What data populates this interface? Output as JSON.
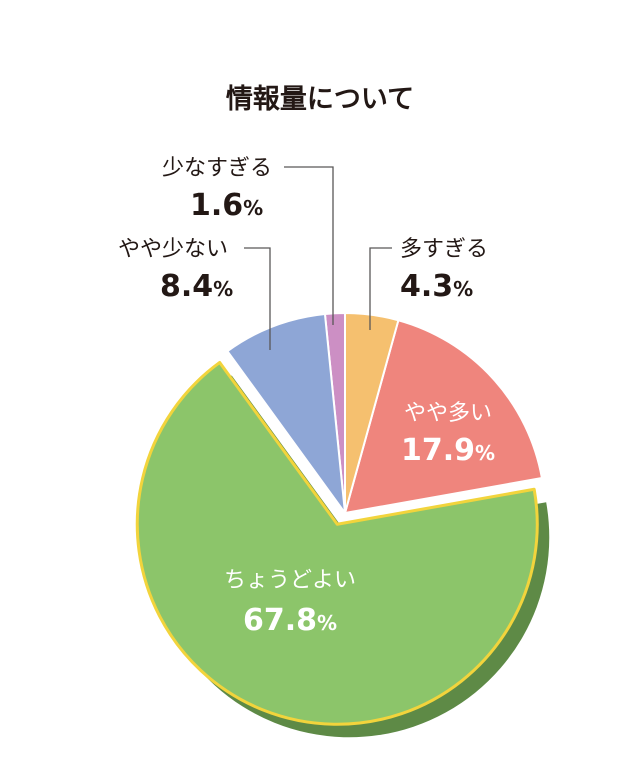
{
  "chart_data": {
    "type": "pie",
    "title": "情報量について",
    "unit": "%",
    "slices": [
      {
        "label": "多すぎる",
        "value": 4.3,
        "color": "#F5C06F"
      },
      {
        "label": "やや多い",
        "value": 17.9,
        "color": "#EF857D"
      },
      {
        "label": "ちょうどよい",
        "value": 67.8,
        "color": "#8CC56A",
        "highlighted": true
      },
      {
        "label": "やや少ない",
        "value": 8.4,
        "color": "#8EA6D6"
      },
      {
        "label": "少なすぎる",
        "value": 1.6,
        "color": "#CC8FC4"
      }
    ],
    "highlight_outline_color": "#F2D43C",
    "highlight_shadow_color": "#5E8A46"
  }
}
